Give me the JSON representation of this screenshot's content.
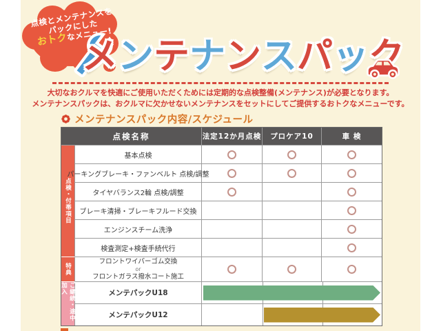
{
  "page": {
    "panel_bg": "#faf3da"
  },
  "badge": {
    "lines": [
      "点検とメンテナンスを",
      "パックにした",
      "おトクなメニュー!"
    ],
    "highlight": "おトク",
    "bg": "#e8583e",
    "highlight_color": "#f7d23e"
  },
  "title": {
    "text": "メンテナンスパック",
    "char_colors": [
      "#d6493e",
      "#5fa8d7"
    ],
    "left_icon": "wrench-icon",
    "right_icon": "car-icon"
  },
  "intro": {
    "lines": [
      "大切なおクルマを快適にご使用いただくためには定期的な点検整備(メンテナンス)が必要となります。",
      "メンテナンスパックは、おクルマに欠かせないメンテナンスをセットにしてご提供するおトクなメニューです。"
    ],
    "color": "#d23c38"
  },
  "section": {
    "label": "メンテナンスパック内容/スケジュール",
    "color": "#d8782a"
  },
  "table": {
    "header": {
      "name": "点検名称",
      "cols": [
        "法定12か月点検",
        "プロケア10",
        "車 検"
      ]
    },
    "side_groups": [
      {
        "label": "点検・付帯項目",
        "color": "#e8604a"
      },
      {
        "label": "特典",
        "color": "#e8604a"
      },
      {
        "label": "ご継続・途中加入",
        "color": "#f09da9"
      }
    ],
    "rows": [
      {
        "name": "基本点検",
        "marks": [
          1,
          1,
          1
        ]
      },
      {
        "name": "パーキングブレーキ・ファンベルト 点検/調整",
        "marks": [
          1,
          1,
          1
        ]
      },
      {
        "name": "タイヤバランス2輪 点検/調整",
        "marks": [
          1,
          0,
          1
        ]
      },
      {
        "name": "ブレーキ清掃・ブレーキフルード交換",
        "marks": [
          0,
          0,
          1
        ]
      },
      {
        "name": "エンジンスチーム洗浄",
        "marks": [
          0,
          0,
          1
        ]
      },
      {
        "name": "検査測定+検査手続代行",
        "marks": [
          0,
          0,
          1
        ]
      }
    ],
    "benefit_row": {
      "name_lines": [
        "フロントワイパーゴム交換",
        "or",
        "フロントガラス撥水コート施工"
      ],
      "marks": [
        1,
        1,
        1
      ]
    },
    "plan_rows": [
      {
        "name": "メンテパックU18",
        "bar_start_col": 0,
        "bar_color": "#6fae81"
      },
      {
        "name": "メンテパックU12",
        "bar_start_col": 1,
        "bar_color": "#b5912f"
      }
    ],
    "mark_color": "#c4928a"
  }
}
